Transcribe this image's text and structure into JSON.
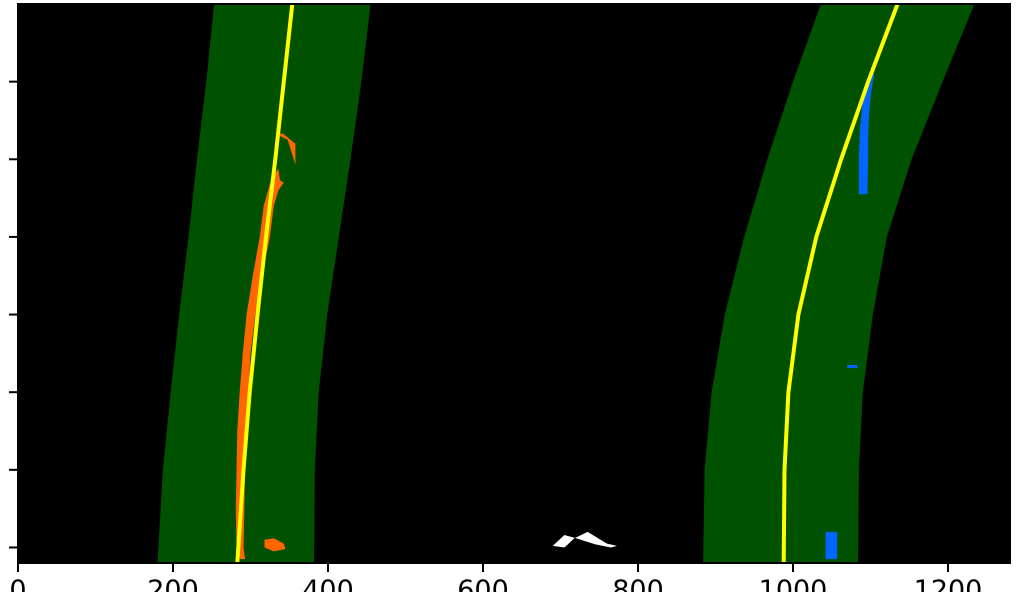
{
  "chart_data": {
    "type": "scatter",
    "title": "",
    "xlabel": "",
    "ylabel": "",
    "xlim": [
      0,
      1280
    ],
    "ylim": [
      720,
      0
    ],
    "grid": false,
    "background_color": "#000000",
    "x_ticks": [
      {
        "value": 0,
        "label": "0"
      },
      {
        "value": 200,
        "label": "200"
      },
      {
        "value": 400,
        "label": "400"
      },
      {
        "value": 600,
        "label": "600"
      },
      {
        "value": 800,
        "label": "800"
      },
      {
        "value": 1000,
        "label": "1000"
      },
      {
        "value": 1200,
        "label": "1200"
      }
    ],
    "y_ticks": [
      {
        "value": 100,
        "label": ""
      },
      {
        "value": 200,
        "label": ""
      },
      {
        "value": 300,
        "label": ""
      },
      {
        "value": 400,
        "label": ""
      },
      {
        "value": 500,
        "label": ""
      },
      {
        "value": 600,
        "label": ""
      },
      {
        "value": 700,
        "label": ""
      }
    ],
    "search_windows": [
      {
        "name": "left-lane-search-window",
        "color": "#005200",
        "left_edge": [
          [
            0,
            253
          ],
          [
            100,
            243
          ],
          [
            200,
            231
          ],
          [
            300,
            220
          ],
          [
            400,
            208
          ],
          [
            500,
            197
          ],
          [
            600,
            187
          ],
          [
            720,
            180
          ]
        ],
        "right_edge": [
          [
            0,
            455
          ],
          [
            100,
            443
          ],
          [
            200,
            429
          ],
          [
            300,
            414
          ],
          [
            400,
            399
          ],
          [
            500,
            388
          ],
          [
            600,
            383
          ],
          [
            720,
            382
          ]
        ]
      },
      {
        "name": "right-lane-search-window",
        "color": "#005200",
        "left_edge": [
          [
            0,
            1036
          ],
          [
            100,
            1000
          ],
          [
            200,
            967
          ],
          [
            300,
            937
          ],
          [
            400,
            912
          ],
          [
            500,
            895
          ],
          [
            600,
            886
          ],
          [
            720,
            884
          ]
        ],
        "right_edge": [
          [
            0,
            1234
          ],
          [
            100,
            1193
          ],
          [
            200,
            1153
          ],
          [
            300,
            1121
          ],
          [
            400,
            1103
          ],
          [
            500,
            1090
          ],
          [
            600,
            1085
          ],
          [
            720,
            1084
          ]
        ]
      }
    ],
    "series": [
      {
        "name": "left-lane-fit",
        "color": "#ffff00",
        "points": [
          [
            0,
            354
          ],
          [
            100,
            343
          ],
          [
            200,
            332
          ],
          [
            300,
            320
          ],
          [
            400,
            309
          ],
          [
            500,
            299
          ],
          [
            600,
            291
          ],
          [
            720,
            283
          ]
        ]
      },
      {
        "name": "right-lane-fit",
        "color": "#ffff00",
        "points": [
          [
            0,
            1135
          ],
          [
            100,
            1097
          ],
          [
            200,
            1062
          ],
          [
            300,
            1030
          ],
          [
            400,
            1007
          ],
          [
            500,
            994
          ],
          [
            600,
            989
          ],
          [
            720,
            988
          ]
        ]
      }
    ],
    "pixel_clusters": [
      {
        "name": "left-lane-pixels",
        "color": "#ff6600",
        "polygons": [
          [
            [
              167,
              334
            ],
            [
              167,
              342
            ],
            [
              180,
              358
            ],
            [
              207,
              358
            ],
            [
              175,
              348
            ],
            [
              170,
              338
            ]
          ],
          [
            [
              212,
              336
            ],
            [
              227,
              338
            ],
            [
              230,
              343
            ],
            [
              240,
              336
            ],
            [
              260,
              330
            ],
            [
              300,
              325
            ],
            [
              350,
              315
            ],
            [
              400,
              306
            ],
            [
              450,
              300
            ],
            [
              500,
              297
            ],
            [
              550,
              295
            ],
            [
              600,
              293
            ],
            [
              650,
              292
            ],
            [
              700,
              291
            ],
            [
              715,
              293
            ],
            [
              715,
              287
            ],
            [
              700,
              282
            ],
            [
              650,
              281
            ],
            [
              600,
              282
            ],
            [
              550,
              283
            ],
            [
              500,
              286
            ],
            [
              450,
              290
            ],
            [
              400,
              295
            ],
            [
              350,
              303
            ],
            [
              300,
              312
            ],
            [
              260,
              317
            ],
            [
              225,
              327
            ]
          ],
          [
            [
              690,
              318
            ],
            [
              688,
              330
            ],
            [
              695,
              343
            ],
            [
              702,
              345
            ],
            [
              705,
              330
            ],
            [
              700,
              318
            ]
          ]
        ]
      },
      {
        "name": "right-lane-pixels",
        "color": "#0066ff",
        "polygons": [
          [
            [
              90,
              1105
            ],
            [
              100,
              1103
            ],
            [
              120,
              1100
            ],
            [
              145,
              1098
            ],
            [
              170,
              1097
            ],
            [
              200,
              1097
            ],
            [
              245,
              1096
            ],
            [
              245,
              1085
            ],
            [
              200,
              1085
            ],
            [
              170,
              1086
            ],
            [
              145,
              1088
            ],
            [
              120,
              1090
            ],
            [
              100,
              1095
            ],
            [
              90,
              1100
            ]
          ],
          [
            [
              465,
              1070
            ],
            [
              465,
              1083
            ],
            [
              469,
              1083
            ],
            [
              469,
              1070
            ]
          ],
          [
            [
              680,
              1042
            ],
            [
              680,
              1057
            ],
            [
              715,
              1057
            ],
            [
              715,
              1042
            ]
          ]
        ]
      },
      {
        "name": "other-pixels",
        "color": "#ffffff",
        "polygons": [
          [
            [
              698,
              690
            ],
            [
              700,
              705
            ],
            [
              688,
              718
            ],
            [
              680,
              735
            ],
            [
              695,
              760
            ],
            [
              698,
              773
            ],
            [
              700,
              765
            ],
            [
              696,
              745
            ],
            [
              688,
              720
            ],
            [
              684,
              705
            ]
          ]
        ]
      }
    ]
  }
}
